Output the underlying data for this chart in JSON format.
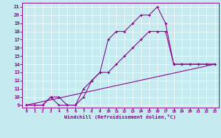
{
  "xlabel": "Windchill (Refroidissement éolien,°C)",
  "bg_color": "#c5eaef",
  "line_color": "#880088",
  "xlim": [
    -0.5,
    23.5
  ],
  "ylim": [
    8.7,
    21.5
  ],
  "xticks": [
    0,
    1,
    2,
    3,
    4,
    5,
    6,
    7,
    8,
    9,
    10,
    11,
    12,
    13,
    14,
    15,
    16,
    17,
    18,
    19,
    20,
    21,
    22,
    23
  ],
  "yticks": [
    9,
    10,
    11,
    12,
    13,
    14,
    15,
    16,
    17,
    18,
    19,
    20,
    21
  ],
  "line1_x": [
    0,
    1,
    2,
    3,
    4,
    5,
    6,
    7,
    8,
    9,
    10,
    11,
    12,
    13,
    14,
    15,
    16,
    17,
    18,
    19,
    20,
    21,
    22,
    23
  ],
  "line1_y": [
    9,
    9,
    9,
    10,
    10,
    9,
    9,
    10,
    12,
    13,
    17,
    18,
    18,
    19,
    20,
    20,
    21,
    19,
    14,
    14,
    14,
    14,
    14,
    14
  ],
  "line2_x": [
    0,
    1,
    2,
    3,
    4,
    5,
    6,
    7,
    8,
    9,
    10,
    11,
    12,
    13,
    14,
    15,
    16,
    17,
    18,
    19,
    20,
    21,
    22,
    23
  ],
  "line2_y": [
    9,
    9,
    9,
    10,
    9,
    9,
    9,
    11,
    12,
    13,
    13,
    14,
    15,
    16,
    17,
    18,
    18,
    18,
    14,
    14,
    14,
    14,
    14,
    14
  ],
  "line3_x": [
    0,
    23
  ],
  "line3_y": [
    9,
    14
  ]
}
